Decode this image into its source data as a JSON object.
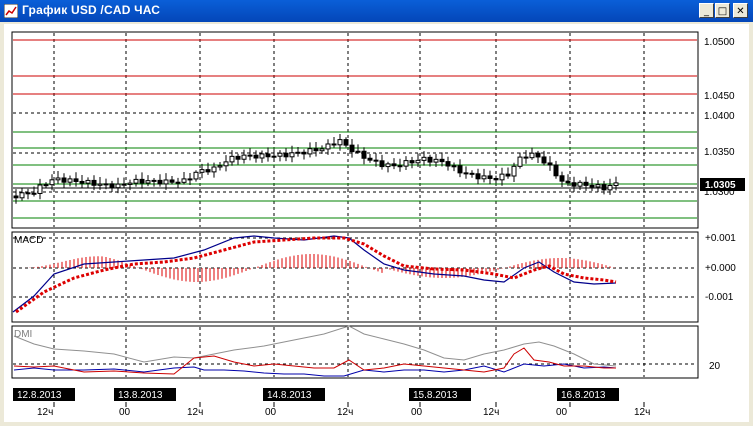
{
  "window": {
    "title": "График USD /CAD  ЧАС",
    "buttons": {
      "minimize": "_",
      "maximize": "□",
      "close": "✕"
    }
  },
  "colors": {
    "candle": "#000000",
    "grid": "#000000",
    "red_level": "#cc0000",
    "green_level": "#008000",
    "macd_line": "#00008b",
    "macd_signal": "#dd0000",
    "macd_hist": "#dd0000",
    "dmi_adx": "#909090",
    "dmi_plus": "#0000aa",
    "dmi_minus": "#cc0000",
    "date_label_bg": "#000000",
    "date_label_fg": "#ffffff"
  },
  "price_panel": {
    "y_ticks": [
      "1.0500",
      "1.0450",
      "1.0400",
      "1.0350",
      "1.0300"
    ],
    "current_price": "1.0305"
  },
  "macd_panel": {
    "label": "MACD",
    "y_ticks": [
      "+0.001",
      "+0.000",
      "-0.001"
    ]
  },
  "dmi_panel": {
    "label": "DMI",
    "y_ticks": [
      "20"
    ]
  },
  "time_axis": {
    "date_labels": [
      "12.8.2013",
      "13.8.2013",
      "14.8.2013",
      "15.8.2013",
      "16.8.2013"
    ],
    "hour_labels": [
      "12ч",
      "00",
      "12ч",
      "00",
      "12ч",
      "00",
      "12ч",
      "00",
      "12ч"
    ]
  }
}
